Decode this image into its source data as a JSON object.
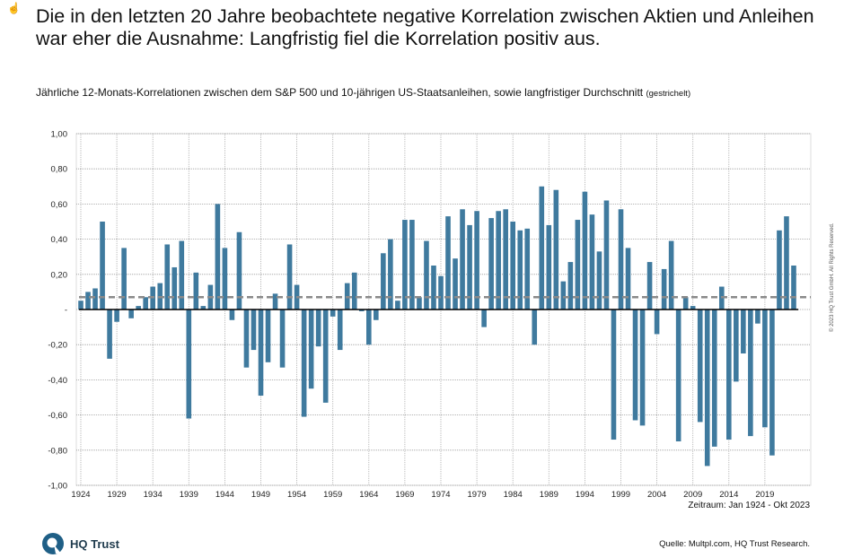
{
  "title": "Die in den letzten 20 Jahre beobachtete negative Korrelation zwischen Aktien und Anleihen war eher die Ausnahme: Langfristig fiel die Korrelation positiv aus.",
  "subtitle": "Jährliche 12-Monats-Korrelationen zwischen dem S&P 500 und 10-jährigen US-Staatsanleihen, sowie langfristiger Durchschnitt",
  "subtitle_note": "(gestrichelt)",
  "period": "Zeitraum: Jan 1924  - Okt 2023",
  "source": "Quelle: Multpl.com, HQ Trust Research.",
  "copyright": "© 2023 HQ Trust GmbH. All Rights Reserved.",
  "logo_text": "HQ Trust",
  "cursor_icon": "hand-pointer-icon",
  "colors": {
    "bar": "#3f7a9e",
    "average": "#8a8a8a",
    "zero": "#000000"
  },
  "chart_data": {
    "type": "bar",
    "ylim": [
      -1,
      1
    ],
    "yticks": [
      "1,00",
      "0,80",
      "0,60",
      "0,40",
      "0,20",
      "-",
      "-0,20",
      "-0,40",
      "-0,60",
      "-0,80",
      "-1,00"
    ],
    "xtick_labels": [
      "1924",
      "1929",
      "1934",
      "1939",
      "1944",
      "1949",
      "1954",
      "1959",
      "1964",
      "1969",
      "1974",
      "1979",
      "1984",
      "1989",
      "1994",
      "1999",
      "2004",
      "2009",
      "2014",
      "2019"
    ],
    "grid": true,
    "average": 0.07,
    "x": [
      1924,
      1925,
      1926,
      1927,
      1928,
      1929,
      1930,
      1931,
      1932,
      1933,
      1934,
      1935,
      1936,
      1937,
      1938,
      1939,
      1940,
      1941,
      1942,
      1943,
      1944,
      1945,
      1946,
      1947,
      1948,
      1949,
      1950,
      1951,
      1952,
      1953,
      1954,
      1955,
      1956,
      1957,
      1958,
      1959,
      1960,
      1961,
      1962,
      1963,
      1964,
      1965,
      1966,
      1967,
      1968,
      1969,
      1970,
      1971,
      1972,
      1973,
      1974,
      1975,
      1976,
      1977,
      1978,
      1979,
      1980,
      1981,
      1982,
      1983,
      1984,
      1985,
      1986,
      1987,
      1988,
      1989,
      1990,
      1991,
      1992,
      1993,
      1994,
      1995,
      1996,
      1997,
      1998,
      1999,
      2000,
      2001,
      2002,
      2003,
      2004,
      2005,
      2006,
      2007,
      2008,
      2009,
      2010,
      2011,
      2012,
      2013,
      2014,
      2015,
      2016,
      2017,
      2018,
      2019,
      2020,
      2021,
      2022,
      2023
    ],
    "values": [
      0.05,
      0.1,
      0.12,
      0.5,
      -0.28,
      -0.07,
      0.35,
      -0.05,
      0.02,
      0.07,
      0.13,
      0.15,
      0.37,
      0.24,
      0.39,
      -0.62,
      0.21,
      0.02,
      0.14,
      0.6,
      0.35,
      -0.06,
      0.44,
      -0.33,
      -0.23,
      -0.49,
      -0.3,
      0.09,
      -0.33,
      0.37,
      0.14,
      -0.61,
      -0.45,
      -0.21,
      -0.53,
      -0.04,
      -0.23,
      0.15,
      0.21,
      -0.01,
      -0.2,
      -0.06,
      0.32,
      0.4,
      0.05,
      0.51,
      0.51,
      0.07,
      0.39,
      0.25,
      0.19,
      0.53,
      0.29,
      0.57,
      0.48,
      0.56,
      -0.1,
      0.52,
      0.56,
      0.57,
      0.5,
      0.45,
      0.46,
      -0.2,
      0.7,
      0.48,
      0.68,
      0.16,
      0.27,
      0.51,
      0.67,
      0.54,
      0.33,
      0.62,
      -0.74,
      0.57,
      0.35,
      -0.63,
      -0.66,
      0.27,
      -0.14,
      0.23,
      0.39,
      -0.75,
      0.07,
      0.02,
      -0.64,
      -0.89,
      -0.78,
      0.13,
      -0.74,
      -0.41,
      -0.25,
      -0.72,
      -0.08,
      -0.67,
      -0.83,
      0.45,
      0.53,
      0.25
    ]
  }
}
